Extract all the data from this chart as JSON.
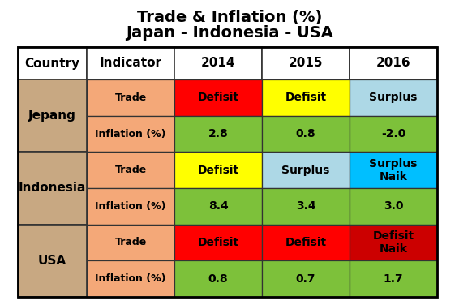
{
  "title_line1": "Trade & Inflation (%)",
  "title_line2": "Japan - Indonesia - USA",
  "col_headers": [
    "Country",
    "Indicator",
    "2014",
    "2015",
    "2016"
  ],
  "rows": [
    {
      "country": "Jepang",
      "cells": [
        {
          "label": "Trade",
          "values": [
            "Defisit",
            "Defisit",
            "Surplus"
          ],
          "colors": [
            "#ff0000",
            "#ffff00",
            "#add8e6"
          ]
        },
        {
          "label": "Inflation (%)",
          "values": [
            "2.8",
            "0.8",
            "-2.0"
          ],
          "colors": [
            "#7dc13a",
            "#7dc13a",
            "#7dc13a"
          ]
        }
      ]
    },
    {
      "country": "Indonesia",
      "cells": [
        {
          "label": "Trade",
          "values": [
            "Defisit",
            "Surplus",
            "Surplus\nNaik"
          ],
          "colors": [
            "#ffff00",
            "#add8e6",
            "#00bfff"
          ]
        },
        {
          "label": "Inflation (%)",
          "values": [
            "8.4",
            "3.4",
            "3.0"
          ],
          "colors": [
            "#7dc13a",
            "#7dc13a",
            "#7dc13a"
          ]
        }
      ]
    },
    {
      "country": "USA",
      "cells": [
        {
          "label": "Trade",
          "values": [
            "Defisit",
            "Defisit",
            "Defisit\nNaik"
          ],
          "colors": [
            "#ff0000",
            "#ff0000",
            "#cc0000"
          ]
        },
        {
          "label": "Inflation (%)",
          "values": [
            "0.8",
            "0.7",
            "1.7"
          ],
          "colors": [
            "#7dc13a",
            "#7dc13a",
            "#7dc13a"
          ]
        }
      ]
    }
  ],
  "country_col_color": "#c8a882",
  "indicator_col_color": "#f4a878",
  "header_bg": "#ffffff",
  "header_text_color": "#000000",
  "outer_border_color": "#000000",
  "grid_color": "#555555",
  "title_fontsize": 14,
  "header_fontsize": 11,
  "cell_fontsize": 10,
  "country_fontsize": 11,
  "indicator_fontsize": 9
}
